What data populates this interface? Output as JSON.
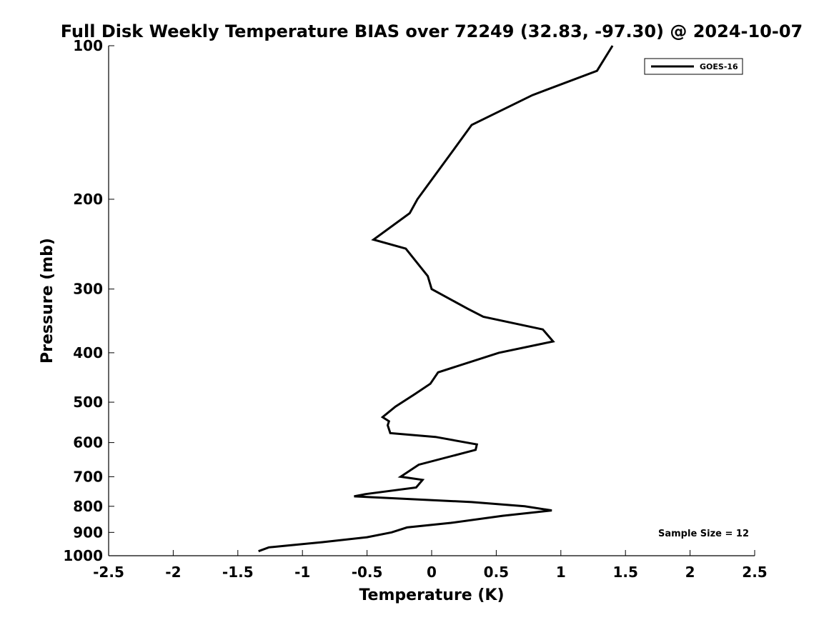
{
  "chart_data": {
    "type": "line",
    "title": "Full Disk Weekly Temperature BIAS over 72249 (32.83, -97.30) @ 2024-10-07",
    "xlabel": "Temperature (K)",
    "ylabel": "Pressure (mb)",
    "xlim": [
      -2.5,
      2.5
    ],
    "ylim": [
      100,
      1000
    ],
    "y_scale": "log",
    "y_reversed": true,
    "x_ticks": [
      "-2.5",
      "-2",
      "-1.5",
      "-1",
      "-0.5",
      "0",
      "0.5",
      "1",
      "1.5",
      "2",
      "2.5"
    ],
    "y_ticks": [
      "100",
      "200",
      "300",
      "400",
      "500",
      "600",
      "700",
      "800",
      "900",
      "1000"
    ],
    "grid": false,
    "legend_position": "top-right",
    "annotation": "Sample Size = 12",
    "series": [
      {
        "name": "GOES-16",
        "color": "#000000",
        "x": [
          1.4,
          1.28,
          0.78,
          0.31,
          0.17,
          -0.11,
          -0.17,
          -0.45,
          -0.2,
          -0.03,
          0.0,
          0.28,
          0.4,
          0.86,
          0.94,
          0.52,
          0.05,
          -0.01,
          -0.13,
          -0.28,
          -0.38,
          -0.33,
          -0.34,
          -0.32,
          0.03,
          0.35,
          0.34,
          -0.1,
          -0.24,
          -0.07,
          -0.12,
          -0.51,
          -0.6,
          0.31,
          0.72,
          0.93,
          0.55,
          0.15,
          -0.19,
          -0.31,
          -0.5,
          -0.85,
          -1.26,
          -1.34
        ],
        "y": [
          100,
          112,
          125,
          143,
          160,
          200,
          213,
          240,
          250,
          283,
          300,
          328,
          340,
          360,
          380,
          400,
          437,
          460,
          482,
          510,
          535,
          545,
          555,
          575,
          585,
          605,
          620,
          663,
          700,
          710,
          735,
          757,
          765,
          785,
          800,
          815,
          835,
          862,
          880,
          900,
          920,
          941,
          963,
          980
        ]
      }
    ]
  }
}
